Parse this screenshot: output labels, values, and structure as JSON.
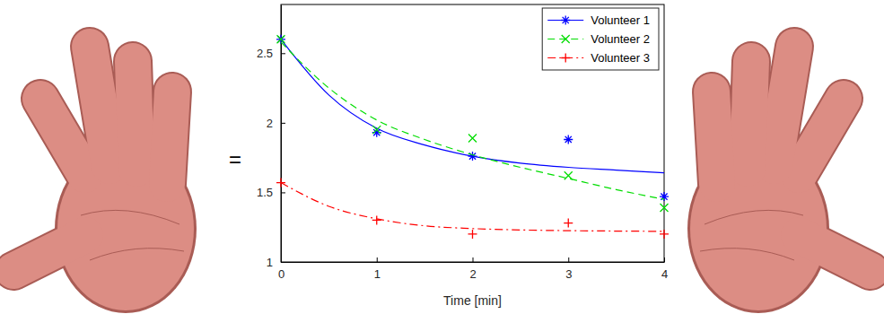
{
  "chart_data": {
    "type": "scatter",
    "x_label": "Time [min]",
    "annotation": "=",
    "x": [
      0,
      1,
      2,
      3,
      4
    ],
    "fit_x": [
      0,
      0.5,
      1,
      1.5,
      2,
      2.5,
      3,
      3.5,
      4
    ],
    "xlim": [
      0,
      4
    ],
    "xticks": [
      0,
      1,
      2,
      3,
      4
    ],
    "ylim": [
      1,
      2.85
    ],
    "yticks": [
      1,
      1.5,
      2,
      2.5
    ],
    "grid": false,
    "legend": "upper right",
    "series": [
      {
        "name": "Volunteer 1",
        "color": "#0000ff",
        "marker": "asterisk",
        "line_style": "solid",
        "values": [
          2.6,
          1.93,
          1.76,
          1.88,
          1.47
        ],
        "fit": [
          2.6,
          2.2,
          1.96,
          1.84,
          1.76,
          1.71,
          1.68,
          1.66,
          1.64
        ]
      },
      {
        "name": "Volunteer 2",
        "color": "#00dd00",
        "marker": "x",
        "line_style": "dashed",
        "values": [
          2.6,
          1.95,
          1.89,
          1.62,
          1.39
        ],
        "fit": [
          2.58,
          2.25,
          2.02,
          1.88,
          1.77,
          1.68,
          1.6,
          1.52,
          1.45
        ]
      },
      {
        "name": "Volunteer 3",
        "color": "#ff0000",
        "marker": "plus",
        "line_style": "dashdot",
        "values": [
          1.57,
          1.3,
          1.2,
          1.28,
          1.2
        ],
        "fit": [
          1.57,
          1.4,
          1.31,
          1.26,
          1.24,
          1.23,
          1.225,
          1.222,
          1.22
        ]
      }
    ]
  }
}
